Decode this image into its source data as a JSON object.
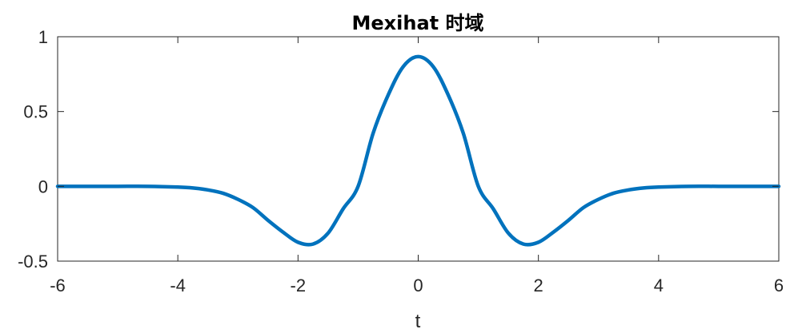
{
  "chart_data": {
    "type": "line",
    "title": "Mexihat 时域",
    "xlabel": "t",
    "ylabel": "",
    "xlim": [
      -6,
      6
    ],
    "ylim": [
      -0.5,
      1
    ],
    "xticks": [
      -6,
      -4,
      -2,
      0,
      2,
      4,
      6
    ],
    "yticks": [
      -0.5,
      0,
      0.5,
      1
    ],
    "xtick_labels": [
      "-6",
      "-4",
      "-2",
      "0",
      "2",
      "4",
      "6"
    ],
    "ytick_labels": [
      "-0.5",
      "0",
      "0.5",
      "1"
    ],
    "grid": false,
    "line_color": "#0072BD",
    "series": [
      {
        "x": [
          -6,
          -5.5,
          -5,
          -4.5,
          -4,
          -3.75,
          -3.5,
          -3.25,
          -3,
          -2.75,
          -2.5,
          -2.25,
          -2,
          -1.75,
          -1.5,
          -1.25,
          -1,
          -0.75,
          -0.5,
          -0.25,
          0,
          0.25,
          0.5,
          0.75,
          1,
          1.25,
          1.5,
          1.75,
          2,
          2.25,
          2.5,
          2.75,
          3,
          3.25,
          3.5,
          3.75,
          4,
          4.5,
          5,
          5.5,
          6
        ],
        "y": [
          0.0,
          -0.0,
          -0.0,
          -0.0,
          -0.005,
          -0.011,
          -0.024,
          -0.046,
          -0.087,
          -0.142,
          -0.227,
          -0.306,
          -0.374,
          -0.386,
          -0.313,
          -0.151,
          0.0,
          0.355,
          0.61,
          0.8,
          0.867,
          0.8,
          0.61,
          0.355,
          0.0,
          -0.151,
          -0.313,
          -0.386,
          -0.374,
          -0.306,
          -0.227,
          -0.142,
          -0.087,
          -0.046,
          -0.024,
          -0.011,
          -0.005,
          -0.0,
          -0.0,
          -0.0,
          0.0
        ]
      }
    ]
  }
}
